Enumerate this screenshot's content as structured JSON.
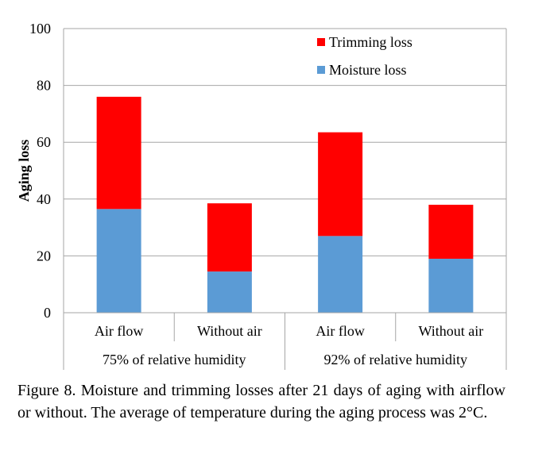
{
  "chart_data": {
    "type": "bar",
    "stacked": true,
    "ylabel": "Aging loss",
    "ylim": [
      0,
      100
    ],
    "yticks": [
      0,
      20,
      40,
      60,
      80,
      100
    ],
    "categories": [
      "Air flow",
      "Without air",
      "Air flow",
      "Without air"
    ],
    "groups": [
      {
        "label": "75% of relative humidity",
        "span": [
          0,
          1
        ]
      },
      {
        "label": "92% of relative humidity",
        "span": [
          2,
          3
        ]
      }
    ],
    "series": [
      {
        "name": "Moisture loss",
        "color": "#5B9BD5",
        "values": [
          36.5,
          14.5,
          27,
          19
        ]
      },
      {
        "name": "Trimming loss",
        "color": "#FF0000",
        "values": [
          39.5,
          24,
          36.5,
          19
        ]
      }
    ],
    "legend": [
      "Trimming loss",
      "Moisture loss"
    ],
    "legend_position": "top-right",
    "grid": true
  },
  "caption": "Figure 8. Moisture and trimming losses after 21 days of aging with airflow or without. The average of temperature during the aging process was 2°C."
}
